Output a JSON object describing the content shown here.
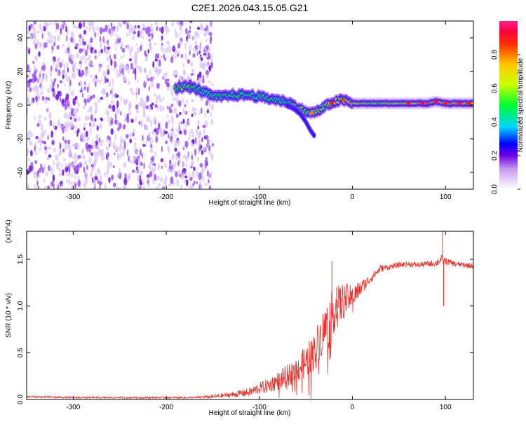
{
  "title": "C2E1.2026.043.15.05.G21",
  "chart_data": [
    {
      "type": "heatmap",
      "xlabel": "Height of straight line (km)",
      "ylabel": "Frequency (Hz)",
      "xlim": [
        -350,
        130
      ],
      "ylim": [
        -50,
        50
      ],
      "x_ticks": [
        -300,
        -200,
        -100,
        0,
        100
      ],
      "x_tick_labels": [
        "-300",
        "-200",
        "-100",
        "0",
        "100"
      ],
      "y_ticks": [
        -40,
        -20,
        0,
        20,
        40
      ],
      "y_tick_labels": [
        "-40",
        "-20",
        "0",
        "20",
        "40"
      ],
      "colorbar": {
        "label": "Normalized spectral amplitude",
        "range": [
          0,
          1
        ],
        "ticks": [
          0,
          0.2,
          0.4,
          0.6,
          0.8
        ],
        "tick_labels": [
          "0.0",
          "0.2",
          "0.4",
          "0.6",
          "0.8"
        ]
      },
      "noise_region": {
        "x": [
          -350,
          -150
        ],
        "y": [
          -50,
          50
        ],
        "amplitude": 0.15
      },
      "signal_track": {
        "x": [
          -190,
          -180,
          -170,
          -160,
          -150,
          -140,
          -130,
          -120,
          -110,
          -100,
          -90,
          -80,
          -70,
          -60,
          -50,
          -45,
          -40,
          -35,
          -30,
          -20,
          -10,
          0,
          20,
          40,
          60,
          80,
          90,
          100,
          130
        ],
        "y": [
          10,
          11,
          10,
          8,
          5,
          5,
          6,
          6,
          6,
          5,
          4,
          3,
          2,
          -1,
          -4,
          -5,
          -4,
          -3,
          -1,
          2,
          3,
          1,
          1,
          1,
          1,
          1,
          2,
          1,
          1
        ],
        "amplitude": [
          0.55,
          0.6,
          0.5,
          0.45,
          0.5,
          0.5,
          0.5,
          0.5,
          0.5,
          0.5,
          0.5,
          0.5,
          0.5,
          0.55,
          0.6,
          0.7,
          0.6,
          0.6,
          0.6,
          0.7,
          0.7,
          0.75,
          0.6,
          0.65,
          0.7,
          0.8,
          0.8,
          0.8,
          0.8
        ]
      },
      "secondary_branch": {
        "x": [
          -70,
          -60,
          -55,
          -50,
          -45,
          -40
        ],
        "y": [
          0,
          -3,
          -6,
          -10,
          -15,
          -19
        ],
        "amplitude": [
          0.3,
          0.3,
          0.3,
          0.3,
          0.35,
          0.35
        ]
      }
    },
    {
      "type": "line",
      "xlabel": "Height of straight line (km)",
      "ylabel": "SNR (10 * v/v)",
      "y_scale_label": "(x10^4)",
      "xlim": [
        -350,
        130
      ],
      "ylim": [
        0,
        1.8
      ],
      "x_ticks": [
        -300,
        -200,
        -100,
        0,
        100
      ],
      "x_tick_labels": [
        "-300",
        "-200",
        "-100",
        "0",
        "100"
      ],
      "y_ticks": [
        0,
        0.5,
        1.0,
        1.5
      ],
      "y_tick_labels": [
        "0.0",
        "0.5",
        "1.0",
        "1.5"
      ],
      "color": "#e8322b",
      "series": [
        {
          "name": "SNR",
          "x": [
            -350,
            -300,
            -250,
            -200,
            -170,
            -150,
            -130,
            -110,
            -100,
            -90,
            -80,
            -70,
            -60,
            -50,
            -40,
            -30,
            -20,
            -10,
            0,
            10,
            20,
            30,
            40,
            50,
            60,
            70,
            80,
            90,
            95,
            100,
            110,
            120,
            130
          ],
          "y": [
            0.03,
            0.02,
            0.02,
            0.02,
            0.02,
            0.03,
            0.05,
            0.08,
            0.12,
            0.15,
            0.2,
            0.25,
            0.32,
            0.4,
            0.55,
            0.75,
            0.95,
            1.05,
            1.1,
            1.2,
            1.3,
            1.4,
            1.42,
            1.44,
            1.45,
            1.44,
            1.45,
            1.46,
            1.5,
            1.48,
            1.45,
            1.44,
            1.43
          ],
          "noise": [
            0.01,
            0.01,
            0.01,
            0.01,
            0.01,
            0.02,
            0.03,
            0.05,
            0.06,
            0.08,
            0.1,
            0.12,
            0.14,
            0.18,
            0.2,
            0.25,
            0.25,
            0.2,
            0.12,
            0.08,
            0.05,
            0.04,
            0.03,
            0.03,
            0.03,
            0.03,
            0.03,
            0.04,
            0.05,
            0.04,
            0.03,
            0.03,
            0.03
          ]
        }
      ],
      "spikes": [
        {
          "x": -22,
          "y": 1.48
        },
        {
          "x": -17,
          "y": 1.2
        },
        {
          "x": 97,
          "y": 1.8
        },
        {
          "x": 98,
          "y": 1.0
        }
      ]
    }
  ]
}
